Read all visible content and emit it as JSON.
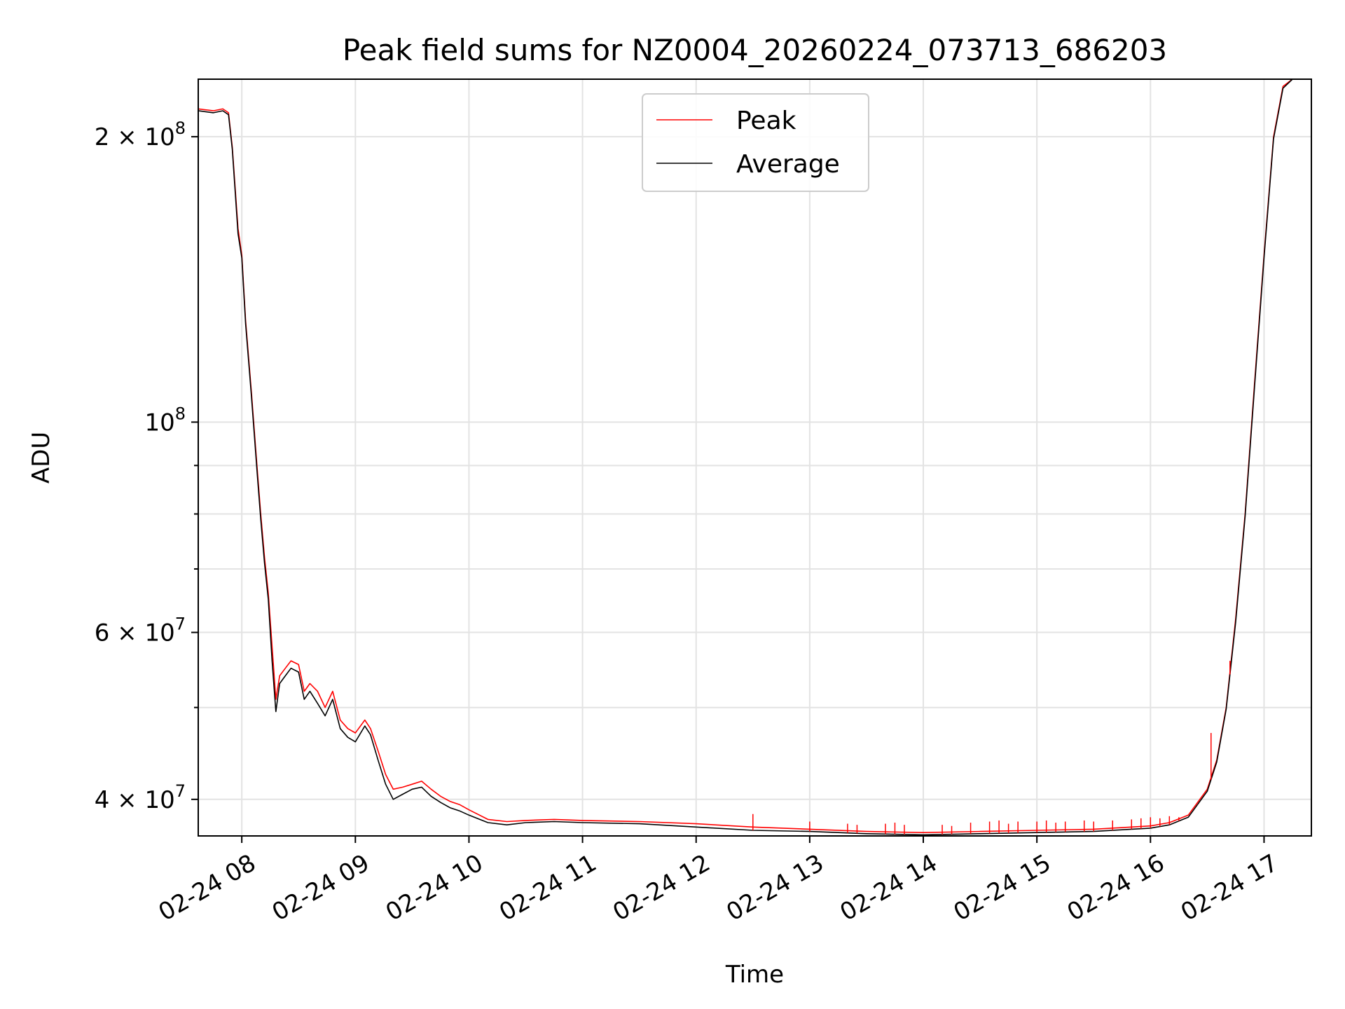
{
  "chart_data": {
    "type": "line",
    "title": "Peak field sums for NZ0004_20260224_073713_686203",
    "xlabel": "Time",
    "ylabel": "ADU",
    "y_scale": "log",
    "ylim": [
      36600000,
      230000000
    ],
    "xlim": [
      "02-24 07:37",
      "02-24 17:25"
    ],
    "grid": true,
    "legend_position": "upper-center",
    "x_ticks": [
      {
        "time": "02-24 08:00",
        "label": "02-24 08"
      },
      {
        "time": "02-24 09:00",
        "label": "02-24 09"
      },
      {
        "time": "02-24 10:00",
        "label": "02-24 10"
      },
      {
        "time": "02-24 11:00",
        "label": "02-24 11"
      },
      {
        "time": "02-24 12:00",
        "label": "02-24 12"
      },
      {
        "time": "02-24 13:00",
        "label": "02-24 13"
      },
      {
        "time": "02-24 14:00",
        "label": "02-24 14"
      },
      {
        "time": "02-24 15:00",
        "label": "02-24 15"
      },
      {
        "time": "02-24 16:00",
        "label": "02-24 16"
      },
      {
        "time": "02-24 17:00",
        "label": "02-24 17"
      }
    ],
    "y_ticks_major": [
      {
        "value": 40000000,
        "mantissa": "4",
        "base": "10",
        "exp": "7"
      },
      {
        "value": 60000000,
        "mantissa": "6",
        "base": "10",
        "exp": "7"
      },
      {
        "value": 100000000,
        "mantissa": "",
        "base": "10",
        "exp": "8"
      },
      {
        "value": 200000000,
        "mantissa": "2",
        "base": "10",
        "exp": "8"
      }
    ],
    "y_ticks_minor": [
      50000000,
      70000000,
      80000000,
      90000000
    ],
    "series": [
      {
        "name": "Peak",
        "color": "#ff0000",
        "x": [
          "02-24 07:37",
          "02-24 07:45",
          "02-24 07:50",
          "02-24 07:53",
          "02-24 07:55",
          "02-24 07:58",
          "02-24 08:00",
          "02-24 08:02",
          "02-24 08:05",
          "02-24 08:08",
          "02-24 08:10",
          "02-24 08:12",
          "02-24 08:14",
          "02-24 08:16",
          "02-24 08:18",
          "02-24 08:20",
          "02-24 08:23",
          "02-24 08:26",
          "02-24 08:30",
          "02-24 08:33",
          "02-24 08:36",
          "02-24 08:40",
          "02-24 08:44",
          "02-24 08:48",
          "02-24 08:52",
          "02-24 08:56",
          "02-24 09:00",
          "02-24 09:05",
          "02-24 09:08",
          "02-24 09:12",
          "02-24 09:16",
          "02-24 09:20",
          "02-24 09:25",
          "02-24 09:30",
          "02-24 09:35",
          "02-24 09:40",
          "02-24 09:45",
          "02-24 09:50",
          "02-24 09:55",
          "02-24 10:00",
          "02-24 10:10",
          "02-24 10:20",
          "02-24 10:30",
          "02-24 10:45",
          "02-24 11:00",
          "02-24 11:30",
          "02-24 12:00",
          "02-24 12:30",
          "02-24 13:00",
          "02-24 13:30",
          "02-24 14:00",
          "02-24 14:30",
          "02-24 15:00",
          "02-24 15:30",
          "02-24 15:50",
          "02-24 16:00",
          "02-24 16:10",
          "02-24 16:20",
          "02-24 16:30",
          "02-24 16:35",
          "02-24 16:40",
          "02-24 16:45",
          "02-24 16:50",
          "02-24 16:55",
          "02-24 17:00",
          "02-24 17:05",
          "02-24 17:10",
          "02-24 17:15",
          "02-24 17:25"
        ],
        "y": [
          214000000,
          213000000,
          214000000,
          212000000,
          195000000,
          160000000,
          150000000,
          128000000,
          108000000,
          90000000,
          80000000,
          72000000,
          66000000,
          58000000,
          51000000,
          54000000,
          55000000,
          56000000,
          55500000,
          52000000,
          53000000,
          52000000,
          50000000,
          52000000,
          48500000,
          47500000,
          47000000,
          48500000,
          47500000,
          45000000,
          42500000,
          41000000,
          41200000,
          41500000,
          41800000,
          41000000,
          40300000,
          39800000,
          39500000,
          39000000,
          38100000,
          37900000,
          38000000,
          38100000,
          38000000,
          37900000,
          37700000,
          37400000,
          37200000,
          37000000,
          36900000,
          37000000,
          37100000,
          37200000,
          37400000,
          37500000,
          37800000,
          38500000,
          41000000,
          44000000,
          50000000,
          62000000,
          80000000,
          110000000,
          150000000,
          200000000,
          226000000,
          230000000,
          230000000
        ]
      },
      {
        "name": "Average",
        "color": "#000000",
        "x": [
          "02-24 07:37",
          "02-24 07:45",
          "02-24 07:50",
          "02-24 07:53",
          "02-24 07:55",
          "02-24 07:58",
          "02-24 08:00",
          "02-24 08:02",
          "02-24 08:05",
          "02-24 08:08",
          "02-24 08:10",
          "02-24 08:12",
          "02-24 08:14",
          "02-24 08:16",
          "02-24 08:18",
          "02-24 08:20",
          "02-24 08:23",
          "02-24 08:26",
          "02-24 08:30",
          "02-24 08:33",
          "02-24 08:36",
          "02-24 08:40",
          "02-24 08:44",
          "02-24 08:48",
          "02-24 08:52",
          "02-24 08:56",
          "02-24 09:00",
          "02-24 09:05",
          "02-24 09:08",
          "02-24 09:12",
          "02-24 09:16",
          "02-24 09:20",
          "02-24 09:25",
          "02-24 09:30",
          "02-24 09:35",
          "02-24 09:40",
          "02-24 09:45",
          "02-24 09:50",
          "02-24 09:55",
          "02-24 10:00",
          "02-24 10:10",
          "02-24 10:20",
          "02-24 10:30",
          "02-24 10:45",
          "02-24 11:00",
          "02-24 11:30",
          "02-24 12:00",
          "02-24 12:30",
          "02-24 13:00",
          "02-24 13:30",
          "02-24 14:00",
          "02-24 14:30",
          "02-24 15:00",
          "02-24 15:30",
          "02-24 15:50",
          "02-24 16:00",
          "02-24 16:10",
          "02-24 16:20",
          "02-24 16:30",
          "02-24 16:35",
          "02-24 16:40",
          "02-24 16:45",
          "02-24 16:50",
          "02-24 16:55",
          "02-24 17:00",
          "02-24 17:05",
          "02-24 17:10",
          "02-24 17:15",
          "02-24 17:25"
        ],
        "y": [
          213000000,
          212000000,
          213000000,
          211000000,
          194000000,
          158000000,
          149000000,
          127000000,
          107000000,
          89000000,
          79000000,
          71000000,
          65000000,
          56000000,
          49500000,
          53000000,
          54000000,
          55000000,
          54500000,
          51000000,
          52000000,
          50500000,
          49000000,
          51000000,
          47500000,
          46500000,
          46000000,
          47800000,
          46800000,
          44000000,
          41500000,
          40000000,
          40500000,
          41000000,
          41200000,
          40300000,
          39700000,
          39200000,
          38900000,
          38500000,
          37800000,
          37600000,
          37800000,
          37900000,
          37800000,
          37700000,
          37400000,
          37100000,
          37000000,
          36800000,
          36700000,
          36800000,
          36900000,
          37000000,
          37200000,
          37300000,
          37600000,
          38300000,
          40800000,
          43800000,
          49800000,
          61500000,
          79500000,
          109000000,
          149000000,
          199000000,
          225000000,
          230000000,
          230000000
        ]
      }
    ],
    "spikes": {
      "series": "Peak",
      "x": [
        "02-24 12:30",
        "02-24 13:00",
        "02-24 13:20",
        "02-24 13:25",
        "02-24 13:40",
        "02-24 13:45",
        "02-24 13:50",
        "02-24 14:10",
        "02-24 14:15",
        "02-24 14:25",
        "02-24 14:35",
        "02-24 14:40",
        "02-24 14:45",
        "02-24 14:50",
        "02-24 15:00",
        "02-24 15:05",
        "02-24 15:10",
        "02-24 15:15",
        "02-24 15:25",
        "02-24 15:30",
        "02-24 15:40",
        "02-24 15:50",
        "02-24 15:55",
        "02-24 16:00",
        "02-24 16:05",
        "02-24 16:10",
        "02-24 16:15",
        "02-24 16:25",
        "02-24 16:32",
        "02-24 16:42"
      ],
      "y": [
        38600000,
        37900000,
        37700000,
        37600000,
        37700000,
        37800000,
        37600000,
        37600000,
        37500000,
        37800000,
        37900000,
        38000000,
        37700000,
        37900000,
        37900000,
        38000000,
        37800000,
        37900000,
        38000000,
        37900000,
        38000000,
        38100000,
        38200000,
        38300000,
        38200000,
        38400000,
        38300000,
        39500000,
        47000000,
        56000000
      ]
    }
  }
}
